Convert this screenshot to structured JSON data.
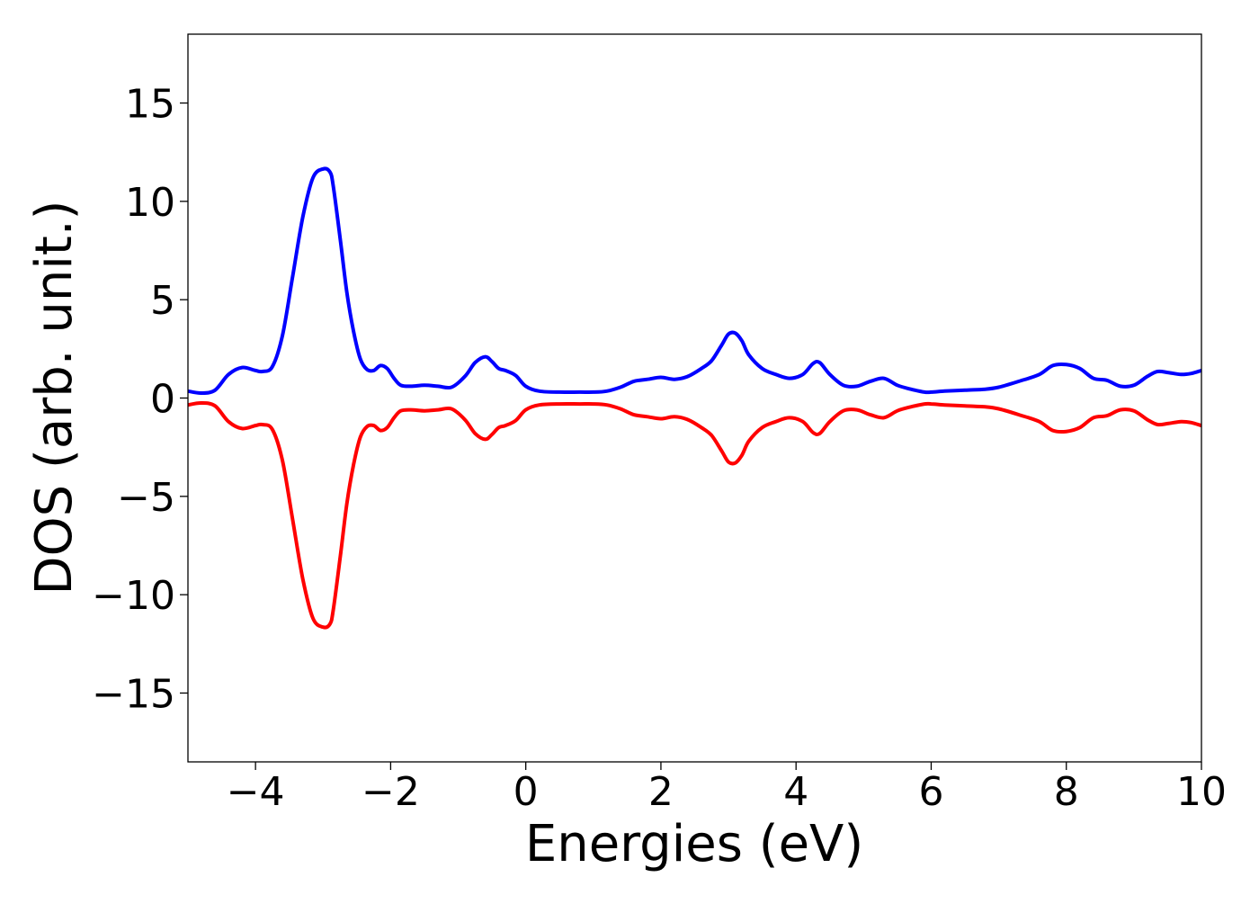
{
  "chart_data": {
    "type": "line",
    "title": "",
    "xlabel": "Energies (eV)",
    "ylabel": "DOS (arb. unit.)",
    "xlim": [
      -5,
      10
    ],
    "ylim": [
      -18.5,
      18.5
    ],
    "xticks": [
      -4,
      -2,
      0,
      2,
      4,
      6,
      8,
      10
    ],
    "xtick_labels": [
      "−4",
      "−2",
      "0",
      "2",
      "4",
      "6",
      "8",
      "10"
    ],
    "yticks": [
      -15,
      -10,
      -5,
      0,
      5,
      10,
      15
    ],
    "ytick_labels": [
      "−15",
      "−10",
      "−5",
      "0",
      "5",
      "10",
      "15"
    ],
    "grid": false,
    "legend": "none",
    "series": [
      {
        "color": "#0000ff",
        "x": [
          -5.0,
          -4.8,
          -4.6,
          -4.4,
          -4.2,
          -4.0,
          -3.9,
          -3.75,
          -3.6,
          -3.45,
          -3.3,
          -3.15,
          -3.0,
          -2.9,
          -2.85,
          -2.75,
          -2.65,
          -2.55,
          -2.45,
          -2.35,
          -2.25,
          -2.15,
          -2.05,
          -1.95,
          -1.85,
          -1.7,
          -1.5,
          -1.3,
          -1.1,
          -0.9,
          -0.75,
          -0.6,
          -0.5,
          -0.4,
          -0.3,
          -0.15,
          0.0,
          0.2,
          0.5,
          0.8,
          1.0,
          1.2,
          1.4,
          1.6,
          1.8,
          2.0,
          2.2,
          2.4,
          2.6,
          2.75,
          2.9,
          3.0,
          3.1,
          3.2,
          3.3,
          3.5,
          3.7,
          3.9,
          4.1,
          4.25,
          4.35,
          4.5,
          4.7,
          4.9,
          5.1,
          5.3,
          5.5,
          5.7,
          5.9,
          6.0,
          6.2,
          6.5,
          6.8,
          7.0,
          7.3,
          7.6,
          7.8,
          8.0,
          8.2,
          8.4,
          8.6,
          8.8,
          9.0,
          9.2,
          9.35,
          9.5,
          9.7,
          9.85,
          10.0
        ],
        "y": [
          0.35,
          0.25,
          0.4,
          1.2,
          1.55,
          1.4,
          1.35,
          1.6,
          3.2,
          6.2,
          9.2,
          11.2,
          11.65,
          11.5,
          10.8,
          8.2,
          5.4,
          3.4,
          2.0,
          1.45,
          1.4,
          1.65,
          1.5,
          1.0,
          0.65,
          0.6,
          0.65,
          0.6,
          0.55,
          1.1,
          1.8,
          2.1,
          1.85,
          1.5,
          1.4,
          1.15,
          0.6,
          0.35,
          0.3,
          0.3,
          0.3,
          0.35,
          0.55,
          0.85,
          0.95,
          1.05,
          0.95,
          1.1,
          1.5,
          1.9,
          2.7,
          3.25,
          3.3,
          2.9,
          2.2,
          1.5,
          1.2,
          1.0,
          1.2,
          1.75,
          1.8,
          1.2,
          0.65,
          0.6,
          0.85,
          1.0,
          0.65,
          0.45,
          0.3,
          0.3,
          0.35,
          0.4,
          0.45,
          0.55,
          0.85,
          1.2,
          1.65,
          1.7,
          1.5,
          1.0,
          0.9,
          0.6,
          0.65,
          1.1,
          1.35,
          1.3,
          1.2,
          1.25,
          1.4
        ]
      },
      {
        "color": "#ff0000",
        "x": [
          -5.0,
          -4.8,
          -4.6,
          -4.4,
          -4.2,
          -4.0,
          -3.9,
          -3.75,
          -3.6,
          -3.45,
          -3.3,
          -3.15,
          -3.0,
          -2.9,
          -2.85,
          -2.75,
          -2.65,
          -2.55,
          -2.45,
          -2.35,
          -2.25,
          -2.15,
          -2.05,
          -1.95,
          -1.85,
          -1.7,
          -1.5,
          -1.3,
          -1.1,
          -0.9,
          -0.75,
          -0.6,
          -0.5,
          -0.4,
          -0.3,
          -0.15,
          0.0,
          0.2,
          0.5,
          0.8,
          1.0,
          1.2,
          1.4,
          1.6,
          1.8,
          2.0,
          2.2,
          2.4,
          2.6,
          2.75,
          2.9,
          3.0,
          3.1,
          3.2,
          3.3,
          3.5,
          3.7,
          3.9,
          4.1,
          4.25,
          4.35,
          4.5,
          4.7,
          4.9,
          5.1,
          5.3,
          5.5,
          5.7,
          5.9,
          6.0,
          6.2,
          6.5,
          6.8,
          7.0,
          7.3,
          7.6,
          7.8,
          8.0,
          8.2,
          8.4,
          8.6,
          8.8,
          9.0,
          9.2,
          9.35,
          9.5,
          9.7,
          9.85,
          10.0
        ],
        "y": [
          -0.35,
          -0.25,
          -0.4,
          -1.2,
          -1.55,
          -1.4,
          -1.35,
          -1.6,
          -3.2,
          -6.2,
          -9.2,
          -11.2,
          -11.65,
          -11.5,
          -10.8,
          -8.2,
          -5.4,
          -3.4,
          -2.0,
          -1.45,
          -1.4,
          -1.65,
          -1.5,
          -1.0,
          -0.65,
          -0.6,
          -0.65,
          -0.6,
          -0.55,
          -1.1,
          -1.8,
          -2.1,
          -1.85,
          -1.5,
          -1.4,
          -1.15,
          -0.6,
          -0.35,
          -0.3,
          -0.3,
          -0.3,
          -0.35,
          -0.55,
          -0.85,
          -0.95,
          -1.05,
          -0.95,
          -1.1,
          -1.5,
          -1.9,
          -2.7,
          -3.25,
          -3.3,
          -2.9,
          -2.2,
          -1.5,
          -1.2,
          -1.0,
          -1.2,
          -1.75,
          -1.8,
          -1.2,
          -0.65,
          -0.6,
          -0.85,
          -1.0,
          -0.65,
          -0.45,
          -0.3,
          -0.3,
          -0.35,
          -0.4,
          -0.45,
          -0.55,
          -0.85,
          -1.2,
          -1.65,
          -1.7,
          -1.5,
          -1.0,
          -0.9,
          -0.6,
          -0.65,
          -1.1,
          -1.35,
          -1.3,
          -1.2,
          -1.25,
          -1.4
        ]
      }
    ]
  }
}
